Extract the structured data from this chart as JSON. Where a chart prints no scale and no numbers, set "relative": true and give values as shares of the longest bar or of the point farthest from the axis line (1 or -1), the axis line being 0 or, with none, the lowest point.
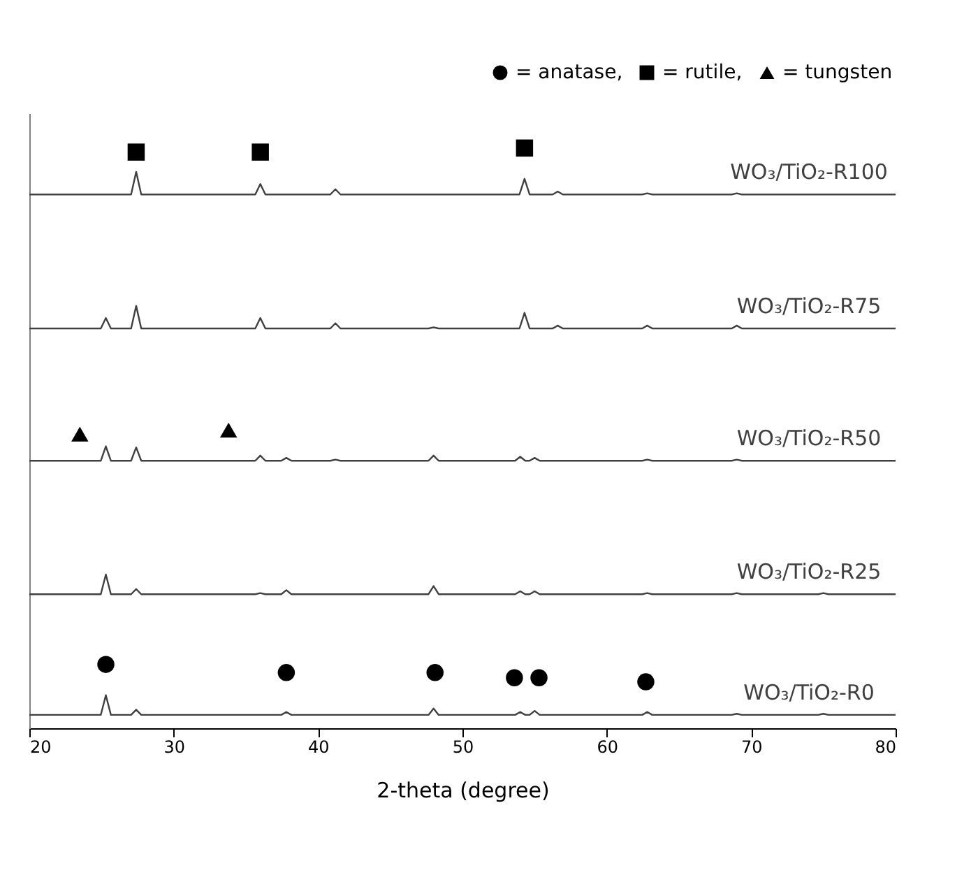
{
  "chart_data": {
    "type": "line",
    "relative": true,
    "xlabel": "2-theta (degree)",
    "xlim": [
      20,
      80
    ],
    "xticks": [
      20,
      30,
      40,
      50,
      60,
      70,
      80
    ],
    "grid": false,
    "legend": "top right",
    "line_style": "solid",
    "series": [
      {
        "name": "WO₃/TiO₂-R100",
        "color": "#404040",
        "x": [
          20,
          27.05,
          27.4,
          27.75,
          35.65,
          36,
          36.35,
          40.85,
          41.2,
          41.55,
          53.95,
          54.3,
          54.65,
          56.25,
          56.6,
          56.95,
          62.45,
          62.8,
          63.15,
          68.65,
          69,
          69.35,
          80
        ],
        "values": [
          0.92,
          0.92,
          0.959,
          0.92,
          0.92,
          0.938,
          0.92,
          0.92,
          0.929,
          0.92,
          0.92,
          0.947,
          0.92,
          0.92,
          0.925,
          0.92,
          0.92,
          0.922,
          0.92,
          0.92,
          0.922,
          0.92,
          0.92
        ]
      },
      {
        "name": "WO₃/TiO₂-R75",
        "color": "#404040",
        "x": [
          20,
          24.95,
          25.3,
          25.65,
          27.05,
          27.4,
          27.75,
          35.65,
          36,
          36.35,
          40.85,
          41.2,
          41.55,
          47.65,
          48,
          48.35,
          53.95,
          54.3,
          54.65,
          56.25,
          56.6,
          56.95,
          62.45,
          62.8,
          63.15,
          68.65,
          69,
          69.35,
          80
        ],
        "values": [
          0.689,
          0.689,
          0.707,
          0.689,
          0.689,
          0.728,
          0.689,
          0.689,
          0.707,
          0.689,
          0.689,
          0.698,
          0.689,
          0.689,
          0.691,
          0.689,
          0.689,
          0.716,
          0.689,
          0.689,
          0.694,
          0.689,
          0.689,
          0.694,
          0.689,
          0.689,
          0.694,
          0.689,
          0.689
        ]
      },
      {
        "name": "WO₃/TiO₂-R50",
        "color": "#404040",
        "x": [
          20,
          24.95,
          25.3,
          25.65,
          27.05,
          27.4,
          27.75,
          35.65,
          36,
          36.35,
          37.45,
          37.8,
          38.15,
          40.85,
          41.2,
          41.55,
          47.65,
          48,
          48.35,
          53.65,
          54,
          54.35,
          54.65,
          55,
          55.35,
          62.45,
          62.8,
          63.15,
          68.65,
          69,
          69.35,
          80
        ],
        "values": [
          0.461,
          0.461,
          0.486,
          0.461,
          0.461,
          0.484,
          0.461,
          0.461,
          0.47,
          0.461,
          0.461,
          0.466,
          0.461,
          0.461,
          0.463,
          0.461,
          0.461,
          0.47,
          0.461,
          0.461,
          0.468,
          0.461,
          0.461,
          0.466,
          0.461,
          0.461,
          0.463,
          0.461,
          0.461,
          0.463,
          0.461,
          0.461
        ]
      },
      {
        "name": "WO₃/TiO₂-R25",
        "color": "#404040",
        "x": [
          20,
          24.95,
          25.3,
          25.65,
          27.05,
          27.4,
          27.75,
          35.65,
          36,
          36.35,
          37.45,
          37.8,
          38.15,
          47.65,
          48,
          48.35,
          53.65,
          54,
          54.35,
          54.65,
          55,
          55.35,
          62.45,
          62.8,
          63.15,
          68.65,
          69,
          69.35,
          74.65,
          75,
          75.35,
          80
        ],
        "values": [
          0.231,
          0.231,
          0.265,
          0.231,
          0.231,
          0.24,
          0.231,
          0.231,
          0.233,
          0.231,
          0.231,
          0.238,
          0.231,
          0.231,
          0.245,
          0.231,
          0.231,
          0.236,
          0.231,
          0.231,
          0.236,
          0.231,
          0.231,
          0.233,
          0.231,
          0.231,
          0.233,
          0.231,
          0.231,
          0.233,
          0.231,
          0.231
        ]
      },
      {
        "name": "WO₃/TiO₂-R0",
        "color": "#404040",
        "x": [
          20,
          24.95,
          25.3,
          25.65,
          27.05,
          27.4,
          27.75,
          37.45,
          37.8,
          38.15,
          47.65,
          48,
          48.35,
          53.65,
          54,
          54.35,
          54.65,
          55,
          55.35,
          62.45,
          62.8,
          63.15,
          68.65,
          69,
          69.35,
          74.65,
          75,
          75.35,
          80
        ],
        "values": [
          0.023,
          0.023,
          0.057,
          0.023,
          0.023,
          0.032,
          0.023,
          0.023,
          0.028,
          0.023,
          0.023,
          0.034,
          0.023,
          0.023,
          0.028,
          0.023,
          0.023,
          0.03,
          0.023,
          0.023,
          0.028,
          0.023,
          0.023,
          0.025,
          0.023,
          0.023,
          0.025,
          0.023,
          0.023
        ]
      },
      {
        "name": "= anatase,",
        "type": "scatter",
        "marker": "circle",
        "color": "#000000",
        "x": [
          25.3,
          37.8,
          48.1,
          53.6,
          55.3,
          62.7
        ],
        "values": [
          0.11,
          0.096,
          0.096,
          0.087,
          0.087,
          0.08
        ]
      },
      {
        "name": "= rutile,",
        "type": "scatter",
        "marker": "square",
        "color": "#000000",
        "x": [
          27.4,
          36,
          54.3
        ],
        "values": [
          0.993,
          0.993,
          1.0
        ]
      },
      {
        "name": "= tungsten",
        "type": "scatter",
        "marker": "triangle",
        "color": "#000000",
        "x": [
          23.5,
          33.8
        ],
        "values": [
          0.507,
          0.514
        ]
      }
    ]
  }
}
